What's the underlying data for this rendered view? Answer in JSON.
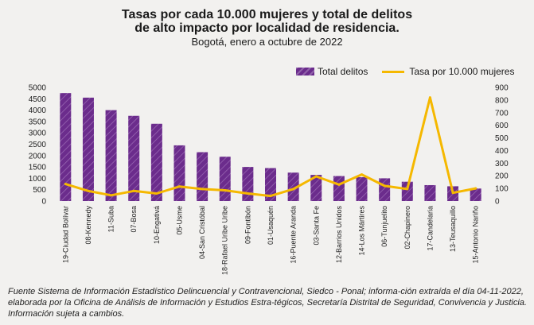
{
  "chart_data": {
    "type": "bar+line",
    "title_line1": "Tasas por cada 10.000 mujeres y total de delitos",
    "title_line2": "de alto impacto por localidad de residencia.",
    "subtitle": "Bogotá, enero a octubre de 2022",
    "categories": [
      "19-Ciudad Bolívar",
      "08-Kennedy",
      "11-Suba",
      "07-Bosa",
      "10-Engativá",
      "05-Usme",
      "04-San Cristóbal",
      "18-Rafael Uribe Uribe",
      "09-Fontibón",
      "01-Usaquén",
      "16-Puente Aranda",
      "03-Santa Fe",
      "12-Barrios Unidos",
      "14-Los Mártires",
      "06-Tunjuelito",
      "02-Chapinero",
      "17-Candelaria",
      "13-Teusaquillo",
      "15-Antonio Nariño"
    ],
    "series": [
      {
        "name": "Total delitos",
        "type": "bar",
        "axis": "left",
        "color": "#6b2c8c",
        "values": [
          4750,
          4550,
          4000,
          3750,
          3400,
          2450,
          2150,
          1950,
          1500,
          1450,
          1250,
          1150,
          1100,
          1050,
          1000,
          850,
          700,
          650,
          550
        ]
      },
      {
        "name": "Tasa por 10.000 mujeres",
        "type": "line",
        "axis": "right",
        "color": "#f5b800",
        "values": [
          135,
          80,
          45,
          80,
          60,
          115,
          95,
          85,
          60,
          40,
          95,
          195,
          130,
          210,
          120,
          95,
          820,
          65,
          100
        ]
      }
    ],
    "y_left": {
      "min": 0,
      "max": 5000,
      "ticks": [
        0,
        500,
        1000,
        1500,
        2000,
        2500,
        3000,
        3500,
        4000,
        4500,
        5000
      ]
    },
    "y_right": {
      "min": 0,
      "max": 900,
      "ticks": [
        0,
        100,
        200,
        300,
        400,
        500,
        600,
        700,
        800,
        900
      ]
    },
    "legend_position": "top-right",
    "grid": false
  },
  "source_note": "Fuente Sistema de Información Estadístico Delincuencial y Contravencional, Siedco - Ponal; informa-ción extraída el día 04-11-2022, elaborada por la Oficina de Análisis de Información y Estudios Estra-tégicos, Secretaría Distrital de Seguridad, Convivencia y Justicia. Información sujeta a cambios."
}
